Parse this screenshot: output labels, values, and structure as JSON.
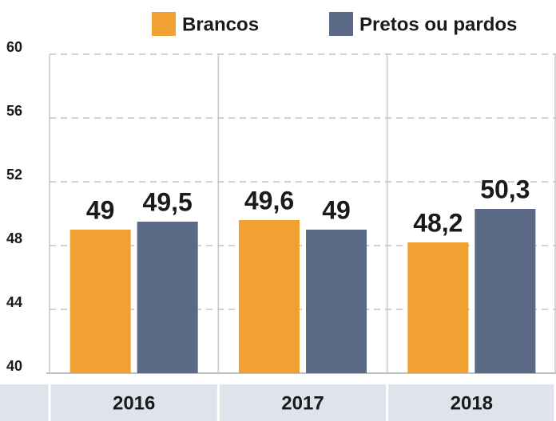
{
  "chart_data": {
    "type": "bar",
    "categories": [
      "2016",
      "2017",
      "2018"
    ],
    "series": [
      {
        "name": "Brancos",
        "color": "#f0a131",
        "values": [
          49,
          49.6,
          48.2
        ],
        "value_labels": [
          "49",
          "49,6",
          "48,2"
        ]
      },
      {
        "name": "Pretos ou pardos",
        "color": "#5a6986",
        "values": [
          49.5,
          49,
          50.3
        ],
        "value_labels": [
          "49,5",
          "49",
          "50,3"
        ]
      }
    ],
    "ylim": [
      40,
      60
    ],
    "yticks": [
      40,
      44,
      48,
      52,
      56,
      60
    ],
    "grid": true
  }
}
